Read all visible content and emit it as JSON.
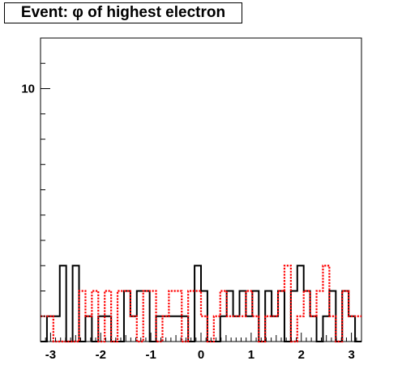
{
  "chart_data": {
    "type": "histogram",
    "title": "Event: φ of highest electron",
    "xlim": [
      -3.2,
      3.2
    ],
    "ylim": [
      0,
      12
    ],
    "bins": 50,
    "x_ticks": [
      -3,
      -2,
      -1,
      0,
      1,
      2,
      3
    ],
    "x_tick_labels": [
      "-3",
      "-2",
      "-1",
      "0",
      "1",
      "2",
      "3"
    ],
    "y_ticks": [
      10
    ],
    "y_tick_labels": [
      "10"
    ],
    "grid": false,
    "legend": "none",
    "series": [
      {
        "style": "solid",
        "color": "#000000",
        "values": [
          0,
          1,
          1,
          3,
          0,
          3,
          0,
          1,
          0,
          1,
          1,
          0,
          0,
          2,
          1,
          2,
          2,
          0,
          1,
          1,
          1,
          1,
          1,
          0,
          3,
          2,
          0,
          0,
          1,
          2,
          1,
          2,
          1,
          2,
          0,
          2,
          1,
          2,
          0,
          2,
          3,
          2,
          1,
          0,
          1,
          2,
          0,
          2,
          1,
          0
        ]
      },
      {
        "style": "dotted",
        "color": "#ff0000",
        "values": [
          1,
          1,
          0,
          0,
          0,
          0,
          2,
          1,
          2,
          0,
          2,
          0,
          2,
          2,
          1,
          0,
          2,
          2,
          0,
          1,
          2,
          2,
          0,
          2,
          2,
          1,
          0,
          1,
          2,
          1,
          1,
          1,
          2,
          1,
          0,
          1,
          1,
          2,
          3,
          0,
          1,
          2,
          1,
          2,
          3,
          1,
          0,
          2,
          1,
          1
        ]
      }
    ]
  }
}
